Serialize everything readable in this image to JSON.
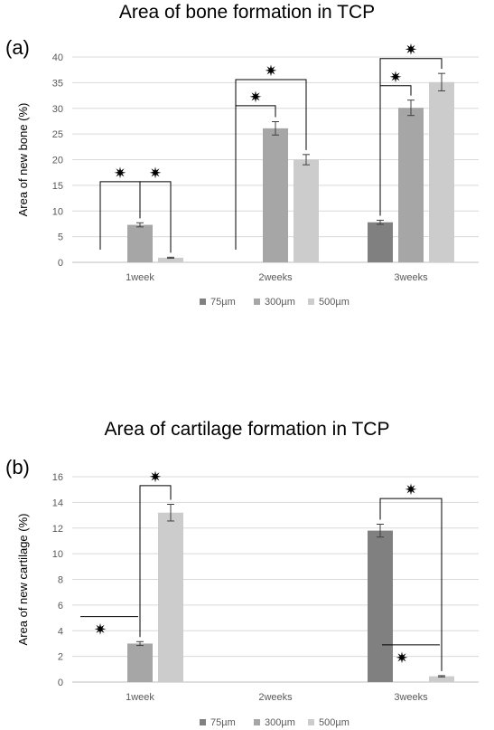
{
  "panels": [
    {
      "label": "(a)",
      "chart_data": {
        "type": "bar",
        "title": "Area of bone formation in TCP",
        "ylabel": "Area of new bone (%)",
        "xlabel": "",
        "ylim": [
          0,
          40
        ],
        "yticks": [
          0,
          5,
          10,
          15,
          20,
          25,
          30,
          35,
          40
        ],
        "categories": [
          "1week",
          "2weeks",
          "3weeks"
        ],
        "grid": true,
        "legend_position": "bottom",
        "series": [
          {
            "name": "75µm",
            "color": "#808080",
            "values": [
              0,
              0,
              7.8
            ],
            "errors": [
              0,
              0,
              0.4
            ]
          },
          {
            "name": "300µm",
            "color": "#a6a6a6",
            "values": [
              7.3,
              26.1,
              30.1
            ],
            "errors": [
              0.4,
              1.3,
              1.5
            ]
          },
          {
            "name": "500µm",
            "color": "#cccccc",
            "values": [
              0.9,
              20.0,
              35.1
            ],
            "errors": [
              0.1,
              1.0,
              1.7
            ]
          }
        ],
        "significance_marker": "✷",
        "comparisons": [
          {
            "category": 0,
            "from": 0,
            "to": 1,
            "level": 15.7
          },
          {
            "category": 0,
            "from": 1,
            "to": 2,
            "level": 15.7
          },
          {
            "category": 1,
            "from": 0,
            "to": 1,
            "level": 30.5
          },
          {
            "category": 1,
            "from": 0,
            "to": 2,
            "level": 35.6
          },
          {
            "category": 2,
            "from": 0,
            "to": 1,
            "level": 34.4
          },
          {
            "category": 2,
            "from": 0,
            "to": 2,
            "level": 39.7
          }
        ]
      }
    },
    {
      "label": "(b)",
      "chart_data": {
        "type": "bar",
        "title": "Area of cartilage formation in TCP",
        "ylabel": "Area of new cartilage (%)",
        "xlabel": "",
        "ylim": [
          0,
          16
        ],
        "yticks": [
          0,
          2,
          4,
          6,
          8,
          10,
          12,
          14,
          16
        ],
        "categories": [
          "1week",
          "2weeks",
          "3weeks"
        ],
        "grid": true,
        "legend_position": "bottom",
        "series": [
          {
            "name": "75µm",
            "color": "#808080",
            "values": [
              0,
              0,
              11.8
            ],
            "errors": [
              0,
              0,
              0.5
            ]
          },
          {
            "name": "300µm",
            "color": "#a6a6a6",
            "values": [
              3.0,
              0,
              0
            ],
            "errors": [
              0.15,
              0,
              0
            ]
          },
          {
            "name": "500µm",
            "color": "#cccccc",
            "values": [
              13.2,
              0,
              0.45
            ],
            "errors": [
              0.65,
              0,
              0.05
            ]
          }
        ],
        "significance_marker": "✷",
        "comparisons": [
          {
            "category": 0,
            "from": 1,
            "to": 2,
            "level": 15.3
          },
          {
            "category": 2,
            "from": 0,
            "to": 2,
            "level": 14.3
          }
        ],
        "zero_markers": [
          {
            "category": 0,
            "series": 0,
            "level": 5.1
          },
          {
            "category": 2,
            "series": 1,
            "level": 2.9
          }
        ]
      }
    }
  ]
}
